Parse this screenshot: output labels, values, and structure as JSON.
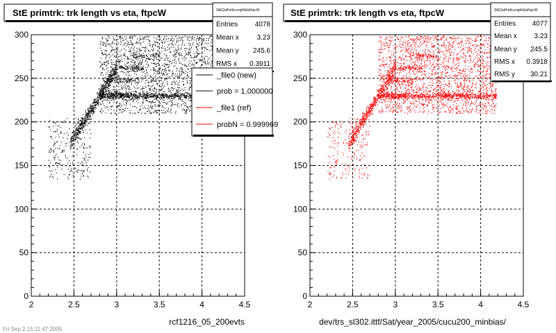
{
  "chart_data": [
    {
      "type": "scatter",
      "title": "StE primtrk: trk length vs eta, ftpcW",
      "xlabel": "rcf1216_05_200evts",
      "ylabel": "",
      "xlim": [
        2,
        4.5
      ],
      "ylim": [
        0,
        300
      ],
      "xticks": [
        "2",
        "2.5",
        "3",
        "3.5",
        "4",
        "4.5"
      ],
      "yticks": [
        "0",
        "50",
        "100",
        "150",
        "200",
        "250",
        "300"
      ],
      "grid": true,
      "color": "#000000",
      "stats": {
        "header": "StEQaPrtrkLengthEtaFtpcW",
        "rows": [
          {
            "label": "Entries",
            "value": "4078"
          },
          {
            "label": "Mean x",
            "value": "3.23"
          },
          {
            "label": "Mean y",
            "value": "245.6"
          },
          {
            "label": "RMS x",
            "value": "0.3911"
          }
        ]
      },
      "legend": {
        "position": "top-right",
        "entries": [
          {
            "label": "_file0 (new)",
            "color": "#000000"
          },
          {
            "label": "prob = 1.000000",
            "color": "#000000"
          },
          {
            "label": "_file1 (ref)",
            "color": "#ff0000"
          },
          {
            "label": "probN = 0.999969",
            "color": "#ff0000"
          }
        ]
      },
      "entries": 4078
    },
    {
      "type": "scatter",
      "title": "StE primtrk: trk length vs eta, ftpcW",
      "xlabel": "dev/trs_sl302.ittf/Sat/year_2005/cucu200_minbias/",
      "ylabel": "",
      "xlim": [
        2,
        4.5
      ],
      "ylim": [
        0,
        300
      ],
      "xticks": [
        "2",
        "2.5",
        "3",
        "3.5",
        "4",
        "4.5"
      ],
      "yticks": [
        "0",
        "50",
        "100",
        "150",
        "200",
        "250",
        "300"
      ],
      "grid": true,
      "color": "#ff0000",
      "stats": {
        "header": "StEQaPrtrkLengthEtaFtpcW",
        "rows": [
          {
            "label": "Entries",
            "value": "4077"
          },
          {
            "label": "Mean x",
            "value": "3.23"
          },
          {
            "label": "Mean y",
            "value": "245.5"
          },
          {
            "label": "RMS x",
            "value": "0.3918"
          },
          {
            "label": "RMS y",
            "value": "30.21"
          }
        ]
      },
      "entries": 4077
    }
  ],
  "footer": "Fri Sep 2 15:11:47 2005"
}
